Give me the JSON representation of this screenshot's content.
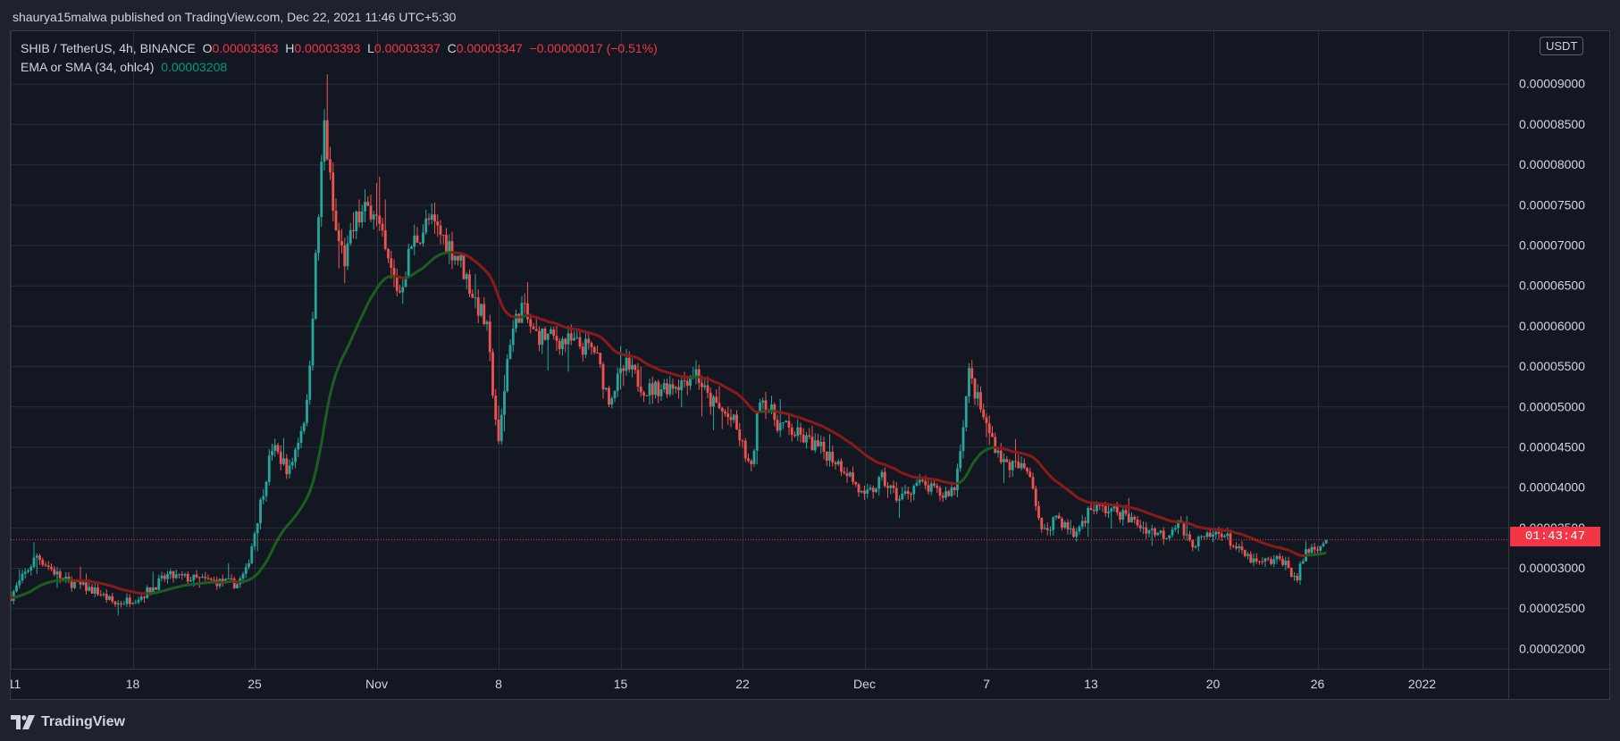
{
  "publish_line": "shaurya15malwa published on TradingView.com, Dec 22, 2021 11:46 UTC+5:30",
  "legend": {
    "symbol": "SHIB / TetherUS, 4h, BINANCE",
    "o_label": "O",
    "o_value": "0.00003363",
    "h_label": "H",
    "h_value": "0.00003393",
    "l_label": "L",
    "l_value": "0.00003337",
    "c_label": "C",
    "c_value": "0.00003347",
    "change": "−0.00000017 (−0.51%)",
    "indicator_name": "EMA or SMA (34, ohlc4)",
    "indicator_value": "0.00003208"
  },
  "currency_badge": "USDT",
  "countdown": "01:43:47",
  "brand": "TradingView",
  "colors": {
    "background": "#131722",
    "up": "#26a69a",
    "down": "#ef5350",
    "ma_above": "#8b1a1a",
    "ma_below": "#1b5e20",
    "last_price_line": "#f23645"
  },
  "chart_data": {
    "type": "candlestick",
    "timeframe": "4h",
    "y_ticks": [
      "0.00002000",
      "0.00002500",
      "0.00003000",
      "0.00003500",
      "0.00004000",
      "0.00004500",
      "0.00005000",
      "0.00005500",
      "0.00006000",
      "0.00006500",
      "0.00007000",
      "0.00007500",
      "0.00008000",
      "0.00008500",
      "0.00009000"
    ],
    "x_ticks": [
      "11",
      "18",
      "25",
      "Nov",
      "8",
      "15",
      "22",
      "Dec",
      "7",
      "13",
      "20",
      "26",
      "2022"
    ],
    "ylim": [
      1.75e-05,
      9.65e-05
    ],
    "last_price": 3.347e-05,
    "price_anchors": [
      {
        "d": 0,
        "p": 2.65e-05
      },
      {
        "d": 1.5,
        "p": 3.15e-05
      },
      {
        "d": 3,
        "p": 2.85e-05
      },
      {
        "d": 5,
        "p": 2.7e-05
      },
      {
        "d": 6,
        "p": 2.55e-05
      },
      {
        "d": 7.5,
        "p": 2.65e-05
      },
      {
        "d": 9,
        "p": 2.9e-05
      },
      {
        "d": 11,
        "p": 2.85e-05
      },
      {
        "d": 13,
        "p": 2.8e-05
      },
      {
        "d": 13.5,
        "p": 2.95e-05
      },
      {
        "d": 14,
        "p": 3.45e-05
      },
      {
        "d": 15,
        "p": 4.5e-05
      },
      {
        "d": 16,
        "p": 4.2e-05
      },
      {
        "d": 17,
        "p": 5e-05
      },
      {
        "d": 17.5,
        "p": 6.8e-05
      },
      {
        "d": 18,
        "p": 8.5e-05
      },
      {
        "d": 18.6,
        "p": 7.2e-05
      },
      {
        "d": 19.2,
        "p": 6.8e-05
      },
      {
        "d": 19.8,
        "p": 7.3e-05
      },
      {
        "d": 20.8,
        "p": 7.5e-05
      },
      {
        "d": 21.6,
        "p": 6.8e-05
      },
      {
        "d": 22.3,
        "p": 6.4e-05
      },
      {
        "d": 23,
        "p": 7e-05
      },
      {
        "d": 24,
        "p": 7.3e-05
      },
      {
        "d": 25,
        "p": 7.05e-05
      },
      {
        "d": 25.8,
        "p": 6.8e-05
      },
      {
        "d": 26.5,
        "p": 6.4e-05
      },
      {
        "d": 27.3,
        "p": 6e-05
      },
      {
        "d": 28,
        "p": 4.5e-05
      },
      {
        "d": 28.6,
        "p": 5.8e-05
      },
      {
        "d": 29.3,
        "p": 6.25e-05
      },
      {
        "d": 30,
        "p": 5.9e-05
      },
      {
        "d": 32,
        "p": 5.8e-05
      },
      {
        "d": 33.5,
        "p": 5.7e-05
      },
      {
        "d": 34.3,
        "p": 5.1e-05
      },
      {
        "d": 35.3,
        "p": 5.5e-05
      },
      {
        "d": 36.5,
        "p": 5.2e-05
      },
      {
        "d": 38.5,
        "p": 5.3e-05
      },
      {
        "d": 39.3,
        "p": 5.45e-05
      },
      {
        "d": 40,
        "p": 5.1e-05
      },
      {
        "d": 41.5,
        "p": 4.8e-05
      },
      {
        "d": 42.5,
        "p": 4.2e-05
      },
      {
        "d": 43,
        "p": 5.15e-05
      },
      {
        "d": 44,
        "p": 4.8e-05
      },
      {
        "d": 45.5,
        "p": 4.6e-05
      },
      {
        "d": 47,
        "p": 4.4e-05
      },
      {
        "d": 48,
        "p": 4.2e-05
      },
      {
        "d": 49,
        "p": 3.85e-05
      },
      {
        "d": 50,
        "p": 4.1e-05
      },
      {
        "d": 51,
        "p": 3.85e-05
      },
      {
        "d": 52,
        "p": 4.05e-05
      },
      {
        "d": 53.5,
        "p": 3.9e-05
      },
      {
        "d": 54.2,
        "p": 4e-05
      },
      {
        "d": 55,
        "p": 5.4e-05
      },
      {
        "d": 56,
        "p": 4.75e-05
      },
      {
        "d": 57,
        "p": 4.3e-05
      },
      {
        "d": 58.5,
        "p": 4.2e-05
      },
      {
        "d": 59.2,
        "p": 3.4e-05
      },
      {
        "d": 60,
        "p": 3.65e-05
      },
      {
        "d": 61,
        "p": 3.4e-05
      },
      {
        "d": 62,
        "p": 3.75e-05
      },
      {
        "d": 63.5,
        "p": 3.7e-05
      },
      {
        "d": 65,
        "p": 3.5e-05
      },
      {
        "d": 66.3,
        "p": 3.4e-05
      },
      {
        "d": 67,
        "p": 3.6e-05
      },
      {
        "d": 67.6,
        "p": 3.3e-05
      },
      {
        "d": 68.5,
        "p": 3.35e-05
      },
      {
        "d": 69.5,
        "p": 3.45e-05
      },
      {
        "d": 70.5,
        "p": 3.2e-05
      },
      {
        "d": 71.5,
        "p": 3.05e-05
      },
      {
        "d": 73,
        "p": 3.1e-05
      },
      {
        "d": 73.8,
        "p": 2.85e-05
      },
      {
        "d": 74.3,
        "p": 3.2e-05
      },
      {
        "d": 75.6,
        "p": 3.35e-05
      }
    ]
  }
}
